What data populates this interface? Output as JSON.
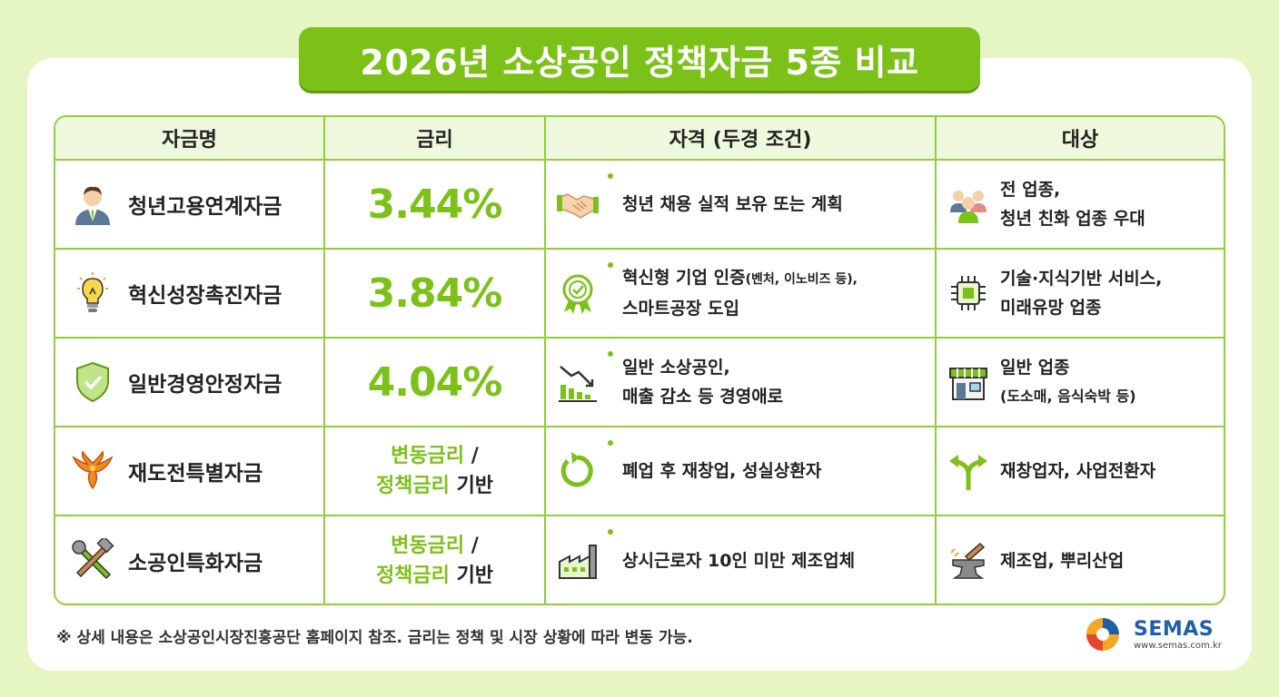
{
  "title": "2026년 소상공인 정책자금 5종 비교",
  "colors": {
    "accent": "#7cc118",
    "border": "#8fcf3a",
    "background": "#e6f5c4",
    "brand": "#1f5fa8"
  },
  "headers": {
    "name": "자금명",
    "rate": "금리",
    "qualification": "자격 (두경 조건)",
    "target": "대상"
  },
  "rows": [
    {
      "icon": "businessman-icon",
      "name": "청년고용연계자금",
      "rate": "3.44%",
      "q_icon": "handshake-icon",
      "q_line1": "청년 채용 실적 보유 또는 계획",
      "t_icon": "people-group-icon",
      "t_line1": "전 업종,",
      "t_line2": "청년 친화 업종 우대"
    },
    {
      "icon": "lightbulb-icon",
      "name": "혁신성장촉진자금",
      "rate": "3.84%",
      "q_icon": "certificate-badge-icon",
      "q_line1_main": "혁신형 기업 인증",
      "q_line1_small": "(벤처, 이노비즈 등),",
      "q_line2": "스마트공장 도입",
      "t_icon": "chip-icon",
      "t_line1": "기술·지식기반 서비스,",
      "t_line2": "미래유망 업종"
    },
    {
      "icon": "shield-check-icon",
      "name": "일반경영안정자금",
      "rate": "4.04%",
      "q_icon": "declining-chart-icon",
      "q_line1": "일반 소상공인,",
      "q_line2": "매출 감소 등 경영애로",
      "t_icon": "storefront-icon",
      "t_line1": "일반 업종",
      "t_line2": "(도소매, 음식숙박 등)"
    },
    {
      "icon": "phoenix-icon",
      "name": "재도전특별자금",
      "rate_line1_green": "변동금리",
      "rate_line1_dark": " /",
      "rate_line2_green": "정책금리",
      "rate_line2_dark": " 기반",
      "q_icon": "restart-arrow-icon",
      "q_line1": "폐업 후 재창업, 성실상환자",
      "t_icon": "split-arrow-icon",
      "t_line1": "재창업자, 사업전환자"
    },
    {
      "icon": "tools-icon",
      "name": "소공인특화자금",
      "rate_line1_green": "변동금리",
      "rate_line1_dark": " /",
      "rate_line2_green": "정책금리",
      "rate_line2_dark": " 기반",
      "q_icon": "factory-icon",
      "q_line1": "상시근로자 10인 미만 제조업체",
      "t_icon": "anvil-icon",
      "t_line1": "제조업, 뿌리산업"
    }
  ],
  "footer": "※ 상세 내용은 소상공인시장진흥공단 홈페이지 참조. 금리는 정책 및 시장 상황에 따라 변동 가능.",
  "logo": {
    "name": "SEMAS",
    "url": "www.semas.com.kr"
  }
}
